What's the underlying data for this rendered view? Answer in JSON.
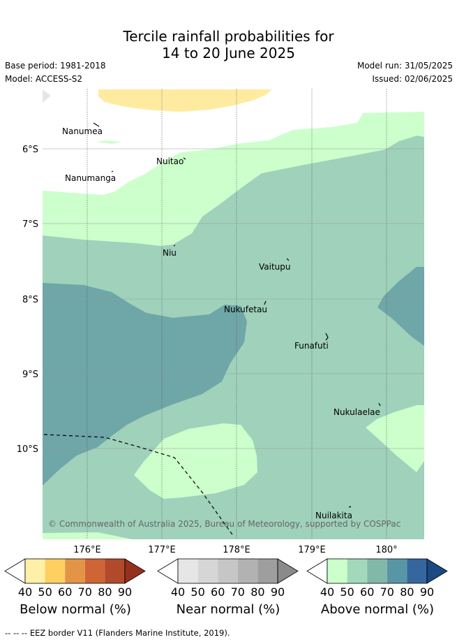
{
  "title_line1": "Tercile rainfall probabilities for",
  "title_line2": "14 to 20 June 2025",
  "base_period": "Base period: 1981-2018",
  "model": "Model: ACCESS-S2",
  "model_run": "Model run: 31/05/2025",
  "issued": "Issued: 02/06/2025",
  "copyright": "© Commonwealth of Australia 2025, Bureau of Meteorology, supported by COSPPac",
  "lat_labels": [
    "6°S",
    "7°S",
    "8°S",
    "9°S",
    "10°S"
  ],
  "lon_labels": [
    "176°E",
    "177°E",
    "178°E",
    "179°E",
    "180°"
  ],
  "islands": [
    "Nanumea",
    "Nanumanga",
    "Nuitao",
    "Niu",
    "Vaitupu",
    "Nukufetau",
    "Funafuti",
    "Nukulaelae",
    "Nuilakita"
  ],
  "colorbars": [
    {
      "label": "Below normal (%)",
      "ticks": [
        "40",
        "50",
        "60",
        "70",
        "80",
        "90"
      ],
      "colors": [
        "#ffffff",
        "#fff0a8",
        "#ffd060",
        "#e39447",
        "#cf6434",
        "#b04a2b",
        "#95301f"
      ]
    },
    {
      "label": "Near normal (%)",
      "ticks": [
        "40",
        "50",
        "60",
        "70",
        "80",
        "90"
      ],
      "colors": [
        "#ffffff",
        "#e6e6e6",
        "#d6d6d6",
        "#c6c6c6",
        "#b2b2b2",
        "#9e9e9e",
        "#8a8a8a"
      ]
    },
    {
      "label": "Above normal (%)",
      "ticks": [
        "40",
        "50",
        "60",
        "70",
        "80",
        "90"
      ],
      "colors": [
        "#ffffff",
        "#ccffcc",
        "#a3d9bb",
        "#82b8a8",
        "#5896a6",
        "#35669e",
        "#194a82"
      ]
    }
  ],
  "footer": "--  --  -- EEZ border V11 (Flanders Marine Institute, 2019)."
}
